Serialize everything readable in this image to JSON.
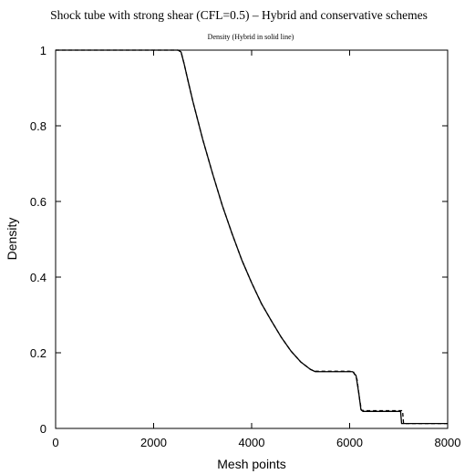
{
  "chart_data": {
    "type": "line",
    "title": "Shock tube with strong shear (CFL=0.5) – Hybrid and conservative schemes",
    "subtitle": "Density  (Hybrid in solid line)",
    "xlabel": "Mesh points",
    "ylabel": "Density",
    "xlim": [
      0,
      8000
    ],
    "ylim": [
      0,
      1
    ],
    "x_ticks": [
      "0",
      "2000",
      "4000",
      "6000",
      "8000"
    ],
    "y_ticks": [
      "0",
      "0.2",
      "0.4",
      "0.6",
      "0.8",
      "1"
    ],
    "grid": false,
    "series": [
      {
        "style": "solid",
        "color": "#000000",
        "points": [
          [
            0,
            1.0
          ],
          [
            2500,
            1.0
          ],
          [
            2560,
            0.995
          ],
          [
            2620,
            0.965
          ],
          [
            2700,
            0.92
          ],
          [
            2800,
            0.865
          ],
          [
            3000,
            0.765
          ],
          [
            3200,
            0.675
          ],
          [
            3400,
            0.59
          ],
          [
            3600,
            0.515
          ],
          [
            3800,
            0.445
          ],
          [
            4000,
            0.385
          ],
          [
            4200,
            0.33
          ],
          [
            4400,
            0.285
          ],
          [
            4600,
            0.242
          ],
          [
            4800,
            0.205
          ],
          [
            5000,
            0.176
          ],
          [
            5200,
            0.156
          ],
          [
            5300,
            0.15
          ],
          [
            6000,
            0.15
          ],
          [
            6060,
            0.15
          ],
          [
            6130,
            0.14
          ],
          [
            6190,
            0.09
          ],
          [
            6230,
            0.05
          ],
          [
            6270,
            0.045
          ],
          [
            7040,
            0.045
          ],
          [
            7060,
            0.013
          ],
          [
            8000,
            0.013
          ]
        ]
      },
      {
        "style": "dashed",
        "color": "#000000",
        "points": [
          [
            0,
            1.0
          ],
          [
            2500,
            1.0
          ],
          [
            2560,
            0.995
          ],
          [
            2620,
            0.965
          ],
          [
            2700,
            0.92
          ],
          [
            2800,
            0.865
          ],
          [
            3000,
            0.765
          ],
          [
            3200,
            0.675
          ],
          [
            3400,
            0.59
          ],
          [
            3600,
            0.515
          ],
          [
            3800,
            0.445
          ],
          [
            4000,
            0.385
          ],
          [
            4200,
            0.33
          ],
          [
            4400,
            0.285
          ],
          [
            4600,
            0.242
          ],
          [
            4800,
            0.205
          ],
          [
            5000,
            0.176
          ],
          [
            5200,
            0.156
          ],
          [
            5300,
            0.151
          ],
          [
            6000,
            0.151
          ],
          [
            6080,
            0.149
          ],
          [
            6150,
            0.13
          ],
          [
            6200,
            0.08
          ],
          [
            6240,
            0.048
          ],
          [
            6300,
            0.047
          ],
          [
            7080,
            0.047
          ],
          [
            7100,
            0.013
          ],
          [
            8000,
            0.013
          ]
        ]
      }
    ]
  }
}
